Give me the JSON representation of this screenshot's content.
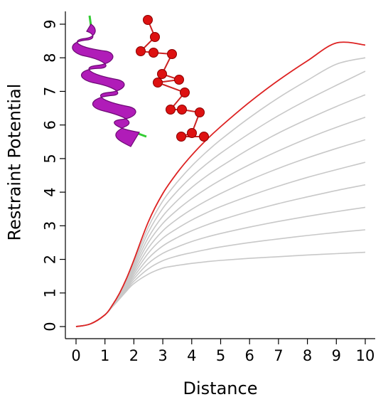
{
  "chart_data": {
    "type": "line",
    "title": "",
    "xlabel": "Distance",
    "ylabel": "Restraint Potential",
    "xlim": [
      0,
      10
    ],
    "ylim": [
      0,
      9
    ],
    "xticks": [
      "0",
      "1",
      "2",
      "3",
      "4",
      "5",
      "6",
      "7",
      "8",
      "9",
      "10"
    ],
    "yticks": [
      "0",
      "1",
      "2",
      "3",
      "4",
      "5",
      "6",
      "7",
      "8",
      "9"
    ],
    "grid": false,
    "legend": "none",
    "colors": {
      "highlight": "#dd2222",
      "family": "#c8c8c8",
      "helix": "#b01cb8",
      "bead": "#dd1111"
    },
    "x": [
      0,
      0.5,
      1,
      1.25,
      1.5,
      1.75,
      2,
      2.5,
      3,
      3.5,
      4,
      4.5,
      5,
      6,
      7,
      8,
      9,
      10
    ],
    "series": [
      {
        "values": [
          0,
          0.08,
          0.35,
          0.58,
          0.82,
          1.06,
          1.28,
          1.56,
          1.74,
          1.82,
          1.88,
          1.93,
          1.97,
          2.03,
          2.08,
          2.13,
          2.17,
          2.21
        ]
      },
      {
        "values": [
          0,
          0.08,
          0.35,
          0.59,
          0.84,
          1.1,
          1.35,
          1.72,
          1.96,
          2.1,
          2.2,
          2.29,
          2.37,
          2.5,
          2.61,
          2.71,
          2.8,
          2.88
        ]
      },
      {
        "values": [
          0,
          0.08,
          0.35,
          0.59,
          0.85,
          1.14,
          1.42,
          1.88,
          2.18,
          2.37,
          2.53,
          2.66,
          2.77,
          2.96,
          3.13,
          3.28,
          3.42,
          3.55
        ]
      },
      {
        "values": [
          0,
          0.08,
          0.35,
          0.6,
          0.87,
          1.18,
          1.49,
          2.03,
          2.4,
          2.65,
          2.85,
          3.02,
          3.17,
          3.43,
          3.66,
          3.86,
          4.05,
          4.22
        ]
      },
      {
        "values": [
          0,
          0.08,
          0.35,
          0.6,
          0.89,
          1.21,
          1.56,
          2.19,
          2.63,
          2.92,
          3.17,
          3.38,
          3.57,
          3.89,
          4.18,
          4.44,
          4.67,
          4.89
        ]
      },
      {
        "values": [
          0,
          0.08,
          0.35,
          0.61,
          0.9,
          1.25,
          1.63,
          2.34,
          2.85,
          3.2,
          3.49,
          3.74,
          3.96,
          4.36,
          4.71,
          5.02,
          5.3,
          5.56
        ]
      },
      {
        "values": [
          0,
          0.08,
          0.35,
          0.61,
          0.92,
          1.29,
          1.7,
          2.5,
          3.07,
          3.47,
          3.81,
          4.1,
          4.36,
          4.82,
          5.23,
          5.6,
          5.93,
          6.23
        ]
      },
      {
        "values": [
          0,
          0.08,
          0.35,
          0.62,
          0.94,
          1.33,
          1.77,
          2.65,
          3.29,
          3.75,
          4.14,
          4.47,
          4.76,
          5.29,
          5.76,
          6.17,
          6.55,
          6.9
        ]
      },
      {
        "values": [
          0,
          0.08,
          0.35,
          0.62,
          0.96,
          1.37,
          1.84,
          2.81,
          3.52,
          4.03,
          4.46,
          4.83,
          5.16,
          5.75,
          6.28,
          6.75,
          7.18,
          7.6
        ]
      },
      {
        "values": [
          0,
          0.08,
          0.35,
          0.63,
          0.97,
          1.4,
          1.91,
          2.96,
          3.74,
          4.3,
          4.78,
          5.19,
          5.56,
          6.22,
          6.81,
          7.33,
          7.81,
          8.0
        ]
      },
      {
        "values": [
          0,
          0.08,
          0.35,
          0.63,
          0.99,
          1.44,
          1.98,
          3.12,
          3.96,
          4.58,
          5.1,
          5.55,
          5.95,
          6.68,
          7.33,
          7.91,
          8.44,
          8.38
        ],
        "highlight": true
      }
    ]
  },
  "inset": {
    "helix_icon": "alpha-helix-ribbon",
    "chain_icon": "bead-chain"
  }
}
